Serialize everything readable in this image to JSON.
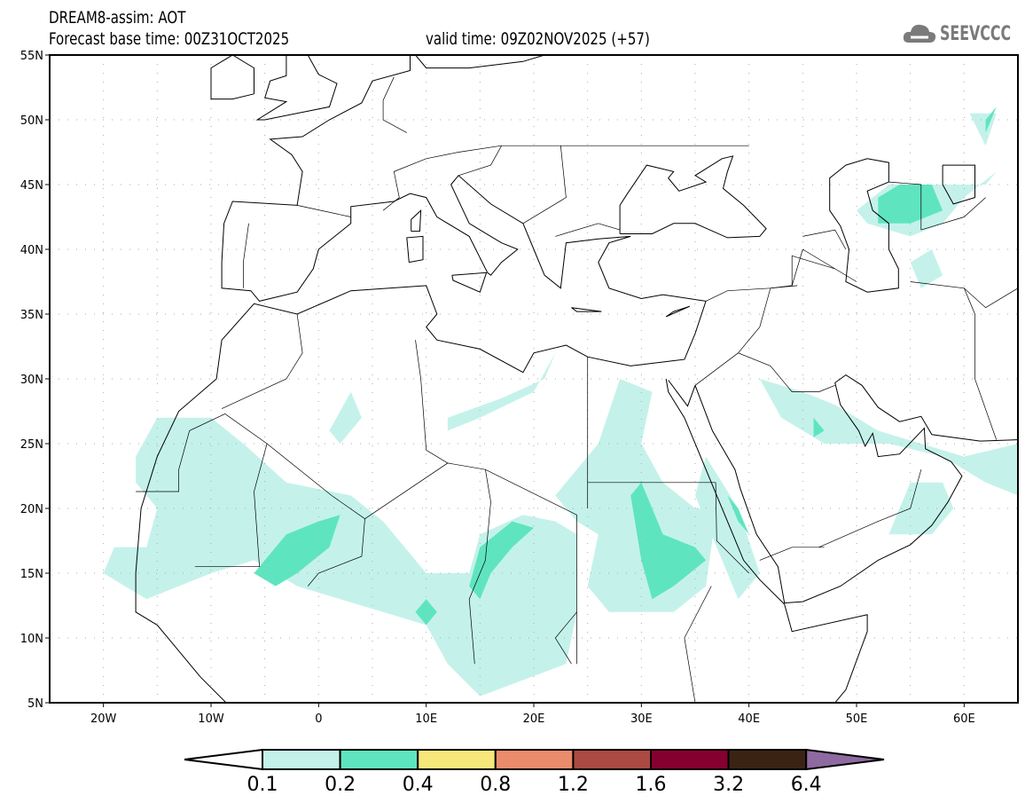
{
  "header": {
    "title": "DREAM8-assim: AOT",
    "base_time": "Forecast base time: 00Z31OCT2025",
    "valid_time": "valid time: 09Z02NOV2025 (+57)",
    "logo_text": "SEEVCCC"
  },
  "chart_data": {
    "type": "map-filled-contour",
    "variable": "AOT",
    "lon_range": [
      -25,
      65
    ],
    "lat_range": [
      5,
      55
    ],
    "lat_ticks": [
      "5N",
      "10N",
      "15N",
      "20N",
      "25N",
      "30N",
      "35N",
      "40N",
      "45N",
      "50N",
      "55N"
    ],
    "lon_ticks": [
      "20W",
      "10W",
      "0",
      "10E",
      "20E",
      "30E",
      "40E",
      "50E",
      "60E"
    ],
    "colorbar": {
      "labels": [
        "0.1",
        "0.2",
        "0.4",
        "0.8",
        "1.2",
        "1.6",
        "3.2",
        "6.4"
      ],
      "colors": [
        "#ffffff",
        "#c4f2ea",
        "#5ee5bf",
        "#f7e67a",
        "#ea8c6c",
        "#ab4a42",
        "#85002e",
        "#3b2314",
        "#8e6aa0"
      ]
    },
    "contours": [
      {
        "level": "0.1-0.2",
        "polygons": [
          [
            [
              -17,
              24
            ],
            [
              -15,
              27
            ],
            [
              -10,
              27
            ],
            [
              -7,
              25
            ],
            [
              -3,
              22
            ],
            [
              3,
              21
            ],
            [
              6,
              19
            ],
            [
              8,
              17
            ],
            [
              10,
              15
            ],
            [
              14,
              15
            ],
            [
              15,
              18
            ],
            [
              19,
              19.5
            ],
            [
              22,
              19
            ],
            [
              24,
              18
            ],
            [
              24,
              12
            ],
            [
              23,
              8
            ],
            [
              15,
              5.5
            ],
            [
              12,
              8
            ],
            [
              10,
              11
            ],
            [
              6,
              12
            ],
            [
              2,
              13
            ],
            [
              -2,
              14
            ],
            [
              -6,
              16
            ],
            [
              -10,
              15
            ],
            [
              -16,
              13
            ],
            [
              -20,
              15
            ],
            [
              -19,
              17
            ],
            [
              -16,
              17
            ],
            [
              -15,
              20
            ],
            [
              -17,
              22
            ]
          ],
          [
            [
              26,
              25
            ],
            [
              28,
              30
            ],
            [
              31,
              29
            ],
            [
              30,
              25
            ],
            [
              32,
              22
            ],
            [
              35,
              20
            ],
            [
              37,
              20
            ],
            [
              36,
              14
            ],
            [
              33,
              12
            ],
            [
              27,
              12
            ],
            [
              25,
              14
            ],
            [
              26,
              18
            ],
            [
              24,
              19
            ],
            [
              22,
              21
            ]
          ],
          [
            [
              36,
              24
            ],
            [
              39,
              20
            ],
            [
              41,
              15
            ],
            [
              39,
              13
            ],
            [
              37,
              17
            ],
            [
              35,
              21
            ]
          ],
          [
            [
              12,
              27
            ],
            [
              17,
              28.5
            ],
            [
              21,
              30
            ],
            [
              22,
              32
            ],
            [
              20,
              29
            ],
            [
              15,
              27
            ],
            [
              12,
              26
            ]
          ],
          [
            [
              1,
              26
            ],
            [
              3,
              29
            ],
            [
              4,
              27
            ],
            [
              2,
              25
            ]
          ],
          [
            [
              41,
              30
            ],
            [
              45,
              29
            ],
            [
              48,
              28
            ],
            [
              50,
              27
            ],
            [
              52,
              26
            ],
            [
              56,
              25
            ],
            [
              60,
              24
            ],
            [
              65,
              25
            ],
            [
              65,
              21
            ],
            [
              62,
              22
            ],
            [
              58,
              24
            ],
            [
              53,
              25
            ],
            [
              47,
              25
            ],
            [
              43,
              27
            ]
          ],
          [
            [
              53,
              18
            ],
            [
              55,
              22
            ],
            [
              58,
              22
            ],
            [
              59,
              20
            ],
            [
              57,
              18
            ]
          ],
          [
            [
              50,
              43
            ],
            [
              53,
              45
            ],
            [
              58,
              45
            ],
            [
              62,
              45
            ],
            [
              63,
              46
            ],
            [
              60,
              44
            ],
            [
              58,
              42
            ],
            [
              55,
              41
            ],
            [
              51,
              42
            ]
          ],
          [
            [
              55,
              39
            ],
            [
              57,
              40
            ],
            [
              58,
              38
            ],
            [
              56,
              37
            ]
          ],
          [
            [
              60.5,
              50.5
            ],
            [
              63,
              50.5
            ],
            [
              62,
              48
            ]
          ]
        ]
      },
      {
        "level": "0.2-0.4",
        "polygons": [
          [
            [
              -6,
              15
            ],
            [
              -3,
              18
            ],
            [
              0,
              19
            ],
            [
              2,
              19.5
            ],
            [
              1,
              17
            ],
            [
              -2,
              15
            ],
            [
              -4,
              14
            ]
          ],
          [
            [
              14,
              14
            ],
            [
              15,
              17
            ],
            [
              18,
              19
            ],
            [
              20,
              18.5
            ],
            [
              18,
              17
            ],
            [
              16,
              15
            ],
            [
              15,
              13
            ]
          ],
          [
            [
              30,
              22
            ],
            [
              31,
              20
            ],
            [
              32,
              18
            ],
            [
              35,
              17
            ],
            [
              36,
              16
            ],
            [
              33,
              14
            ],
            [
              31,
              13
            ],
            [
              30,
              16
            ],
            [
              29,
              21
            ]
          ],
          [
            [
              9,
              12
            ],
            [
              10,
              13
            ],
            [
              11,
              12
            ],
            [
              10,
              11
            ]
          ],
          [
            [
              38,
              21
            ],
            [
              39,
              19
            ],
            [
              40,
              18
            ],
            [
              39,
              20
            ]
          ],
          [
            [
              52,
              44
            ],
            [
              54,
              45
            ],
            [
              57,
              45
            ],
            [
              58,
              43
            ],
            [
              55,
              42
            ],
            [
              52,
              42
            ]
          ],
          [
            [
              46,
              27
            ],
            [
              47,
              26
            ],
            [
              46,
              25.5
            ]
          ],
          [
            [
              62,
              50
            ],
            [
              63,
              51
            ],
            [
              62,
              49
            ]
          ]
        ]
      }
    ]
  }
}
